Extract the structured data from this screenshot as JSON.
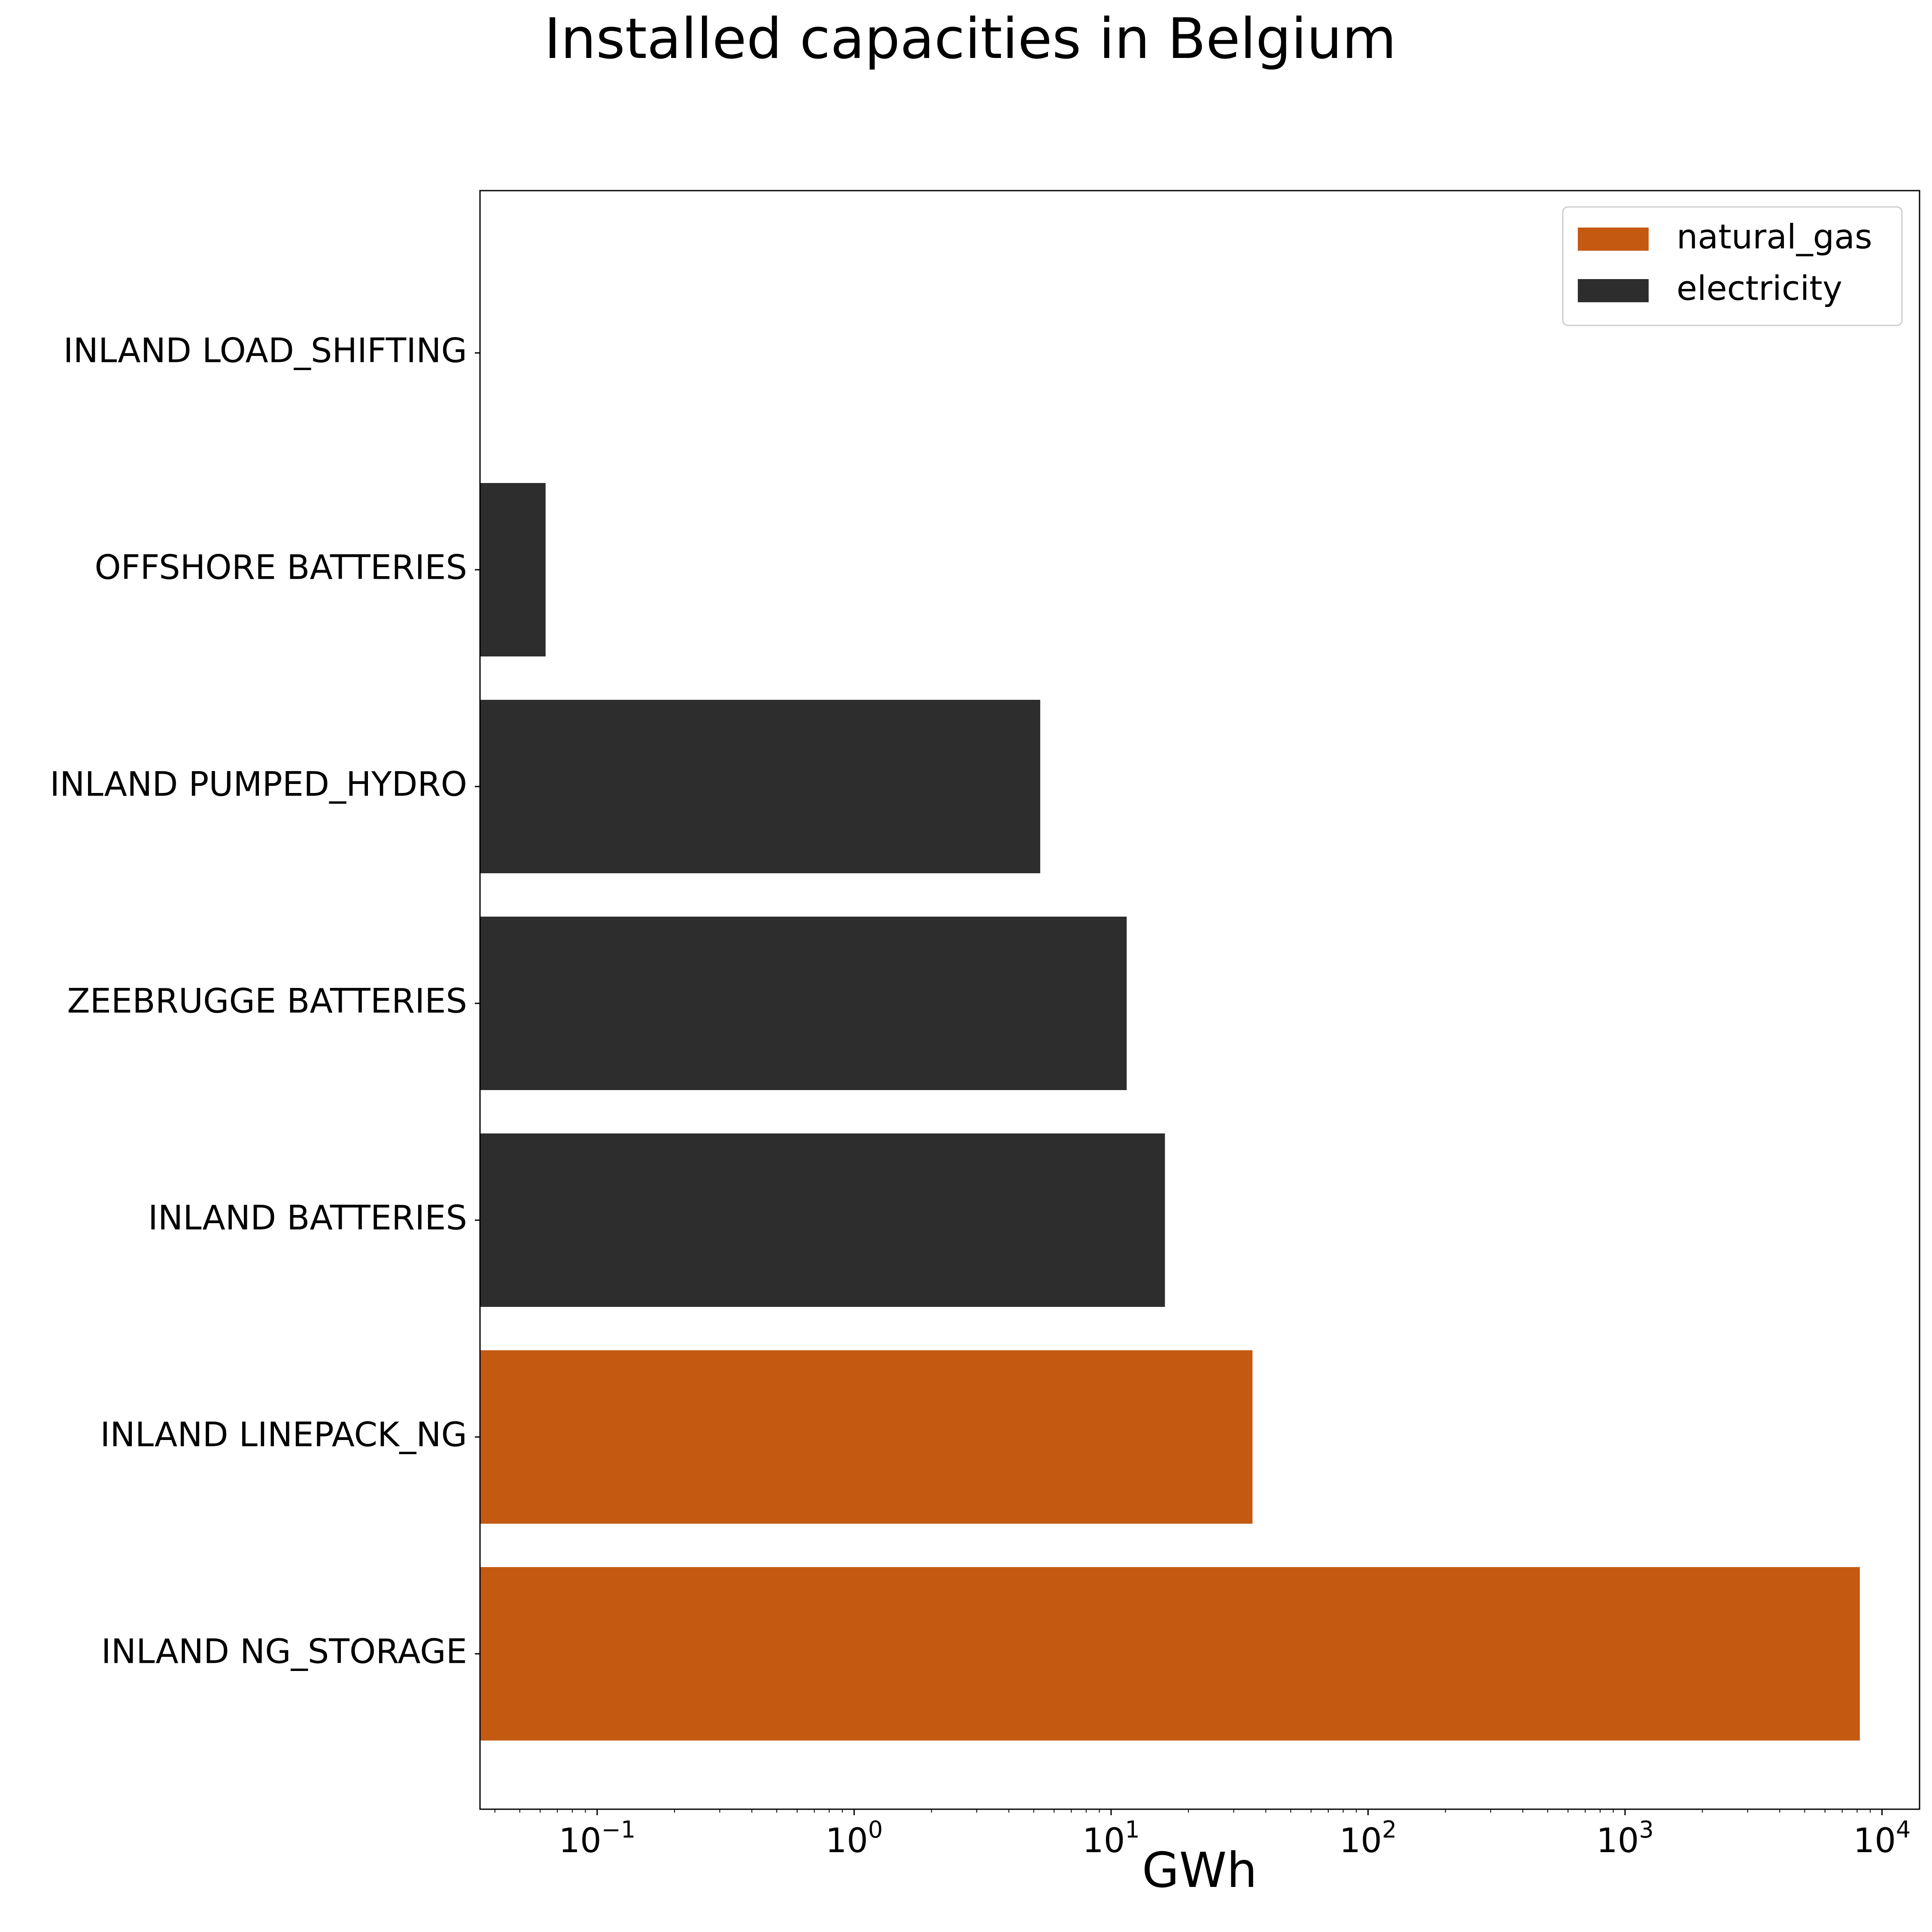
{
  "chart_data": {
    "type": "bar",
    "orientation": "horizontal",
    "title": "Installed capacities in Belgium",
    "xlabel": "GWh",
    "ylabel": "",
    "xscale": "log",
    "xlim": [
      0.035,
      14000
    ],
    "xticks": [
      {
        "value": 0.1,
        "base": "10",
        "exp": "−1"
      },
      {
        "value": 1,
        "base": "10",
        "exp": "0"
      },
      {
        "value": 10,
        "base": "10",
        "exp": "1"
      },
      {
        "value": 100,
        "base": "10",
        "exp": "2"
      },
      {
        "value": 1000,
        "base": "10",
        "exp": "3"
      },
      {
        "value": 10000,
        "base": "10",
        "exp": "4"
      }
    ],
    "grid": false,
    "legend_position": "top-right",
    "categories": [
      "INLAND LOAD_SHIFTING",
      "OFFSHORE BATTERIES",
      "INLAND PUMPED_HYDRO",
      "ZEEBRUGGE BATTERIES",
      "INLAND BATTERIES",
      "INLAND LINEPACK_NG",
      "INLAND NG_STORAGE"
    ],
    "values": [
      0,
      0.063,
      5.3,
      11.5,
      16.2,
      35.5,
      8200
    ],
    "series_of_bar": [
      "electricity",
      "electricity",
      "electricity",
      "electricity",
      "electricity",
      "natural_gas",
      "natural_gas"
    ],
    "series": [
      {
        "name": "natural_gas",
        "color": "#c45a12"
      },
      {
        "name": "electricity",
        "color": "#2d2d2d"
      }
    ]
  }
}
